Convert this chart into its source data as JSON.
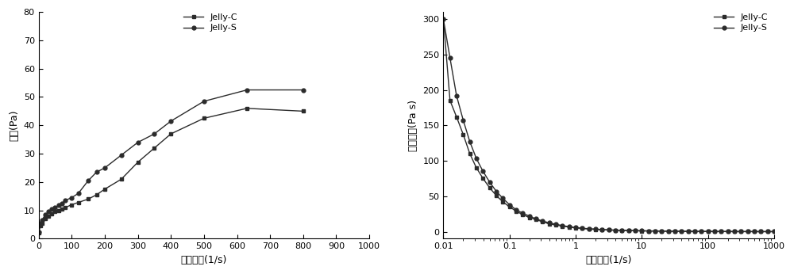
{
  "left_chart": {
    "ylabel": "应力(Pa)",
    "xlabel": "剪切速率(1/s)",
    "xlim": [
      0,
      1000
    ],
    "ylim": [
      0,
      80
    ],
    "xticks": [
      0,
      100,
      200,
      300,
      400,
      500,
      600,
      700,
      800,
      900,
      1000
    ],
    "yticks": [
      0,
      10,
      20,
      30,
      40,
      50,
      60,
      70,
      80
    ],
    "jellyC_x": [
      0.5,
      5,
      10,
      20,
      30,
      40,
      50,
      60,
      70,
      80,
      100,
      120,
      150,
      175,
      200,
      250,
      300,
      350,
      400,
      500,
      630,
      800
    ],
    "jellyC_y": [
      2.0,
      4.5,
      5.5,
      7.0,
      8.0,
      8.8,
      9.5,
      10.0,
      10.5,
      11.0,
      12.0,
      12.8,
      14.0,
      15.5,
      17.5,
      21.0,
      27.0,
      32.0,
      37.0,
      42.5,
      46.0,
      45.0
    ],
    "jellyS_x": [
      0.5,
      5,
      10,
      20,
      30,
      40,
      50,
      60,
      70,
      80,
      100,
      120,
      150,
      175,
      200,
      250,
      300,
      350,
      400,
      500,
      630,
      800
    ],
    "jellyS_y": [
      2.5,
      5.5,
      6.5,
      8.5,
      9.5,
      10.5,
      11.0,
      11.8,
      12.5,
      13.5,
      14.5,
      16.0,
      20.5,
      23.5,
      25.0,
      29.5,
      34.0,
      37.0,
      41.5,
      48.5,
      52.5,
      52.5
    ],
    "legend_labels": [
      "Jelly-C",
      "Jelly-S"
    ],
    "line_color": "#2b2b2b",
    "marker_C": "s",
    "marker_S": "o"
  },
  "right_chart": {
    "ylabel": "表观粿度(Pa s)",
    "xlabel": "剪切速率(1/s)",
    "xlim_log": [
      0.01,
      1000
    ],
    "ylim": [
      -10,
      310
    ],
    "yticks": [
      0,
      50,
      100,
      150,
      200,
      250,
      300
    ],
    "jellyC_x": [
      0.01,
      0.0126,
      0.0158,
      0.02,
      0.0251,
      0.0316,
      0.0398,
      0.05,
      0.063,
      0.0794,
      0.1,
      0.126,
      0.158,
      0.2,
      0.251,
      0.316,
      0.398,
      0.5,
      0.631,
      0.794,
      1.0,
      1.259,
      1.585,
      1.995,
      2.512,
      3.162,
      3.981,
      5.012,
      6.31,
      7.943,
      10.0,
      12.59,
      15.85,
      19.95,
      25.12,
      31.62,
      39.81,
      50.12,
      63.1,
      79.43,
      100.0,
      125.9,
      158.5,
      199.5,
      251.2,
      316.2,
      398.1,
      501.2,
      631.0,
      794.3,
      1000.0
    ],
    "jellyC_y": [
      300,
      185,
      162,
      137,
      110,
      90,
      75,
      62,
      51,
      42,
      35,
      29,
      24,
      20,
      17,
      14,
      11,
      9.5,
      7.8,
      6.5,
      5.5,
      4.5,
      3.8,
      3.2,
      2.7,
      2.3,
      2.0,
      1.7,
      1.5,
      1.3,
      1.1,
      0.95,
      0.82,
      0.71,
      0.62,
      0.54,
      0.47,
      0.41,
      0.36,
      0.32,
      0.28,
      0.25,
      0.22,
      0.19,
      0.17,
      0.15,
      0.13,
      0.12,
      0.1,
      0.09,
      0.08
    ],
    "jellyS_x": [
      0.01,
      0.0126,
      0.0158,
      0.02,
      0.0251,
      0.0316,
      0.0398,
      0.05,
      0.063,
      0.0794,
      0.1,
      0.126,
      0.158,
      0.2,
      0.251,
      0.316,
      0.398,
      0.5,
      0.631,
      0.794,
      1.0,
      1.259,
      1.585,
      1.995,
      2.512,
      3.162,
      3.981,
      5.012,
      6.31,
      7.943,
      10.0,
      12.59,
      15.85,
      19.95,
      25.12,
      31.62,
      39.81,
      50.12,
      63.1,
      79.43,
      100.0,
      125.9,
      158.5,
      199.5,
      251.2,
      316.2,
      398.1,
      501.2,
      631.0,
      794.3,
      1000.0
    ],
    "jellyS_y": [
      300,
      245,
      192,
      157,
      127,
      103,
      85,
      70,
      57,
      47,
      38,
      31,
      26,
      22,
      18,
      15,
      12.5,
      10.5,
      8.5,
      7.0,
      5.8,
      4.8,
      4.1,
      3.5,
      3.0,
      2.55,
      2.2,
      1.9,
      1.65,
      1.4,
      1.25,
      1.08,
      0.93,
      0.8,
      0.7,
      0.61,
      0.53,
      0.46,
      0.4,
      0.35,
      0.31,
      0.27,
      0.24,
      0.21,
      0.18,
      0.16,
      0.14,
      0.12,
      0.11,
      0.095,
      0.085
    ],
    "legend_labels": [
      "Jelly-C",
      "Jelly-S"
    ],
    "line_color": "#2b2b2b",
    "marker_C": "s",
    "marker_S": "o"
  },
  "font_size": 9,
  "legend_fontsize": 8,
  "tick_fontsize": 8,
  "line_width": 1.0,
  "marker_size": 3.5,
  "figure_facecolor": "#ffffff"
}
